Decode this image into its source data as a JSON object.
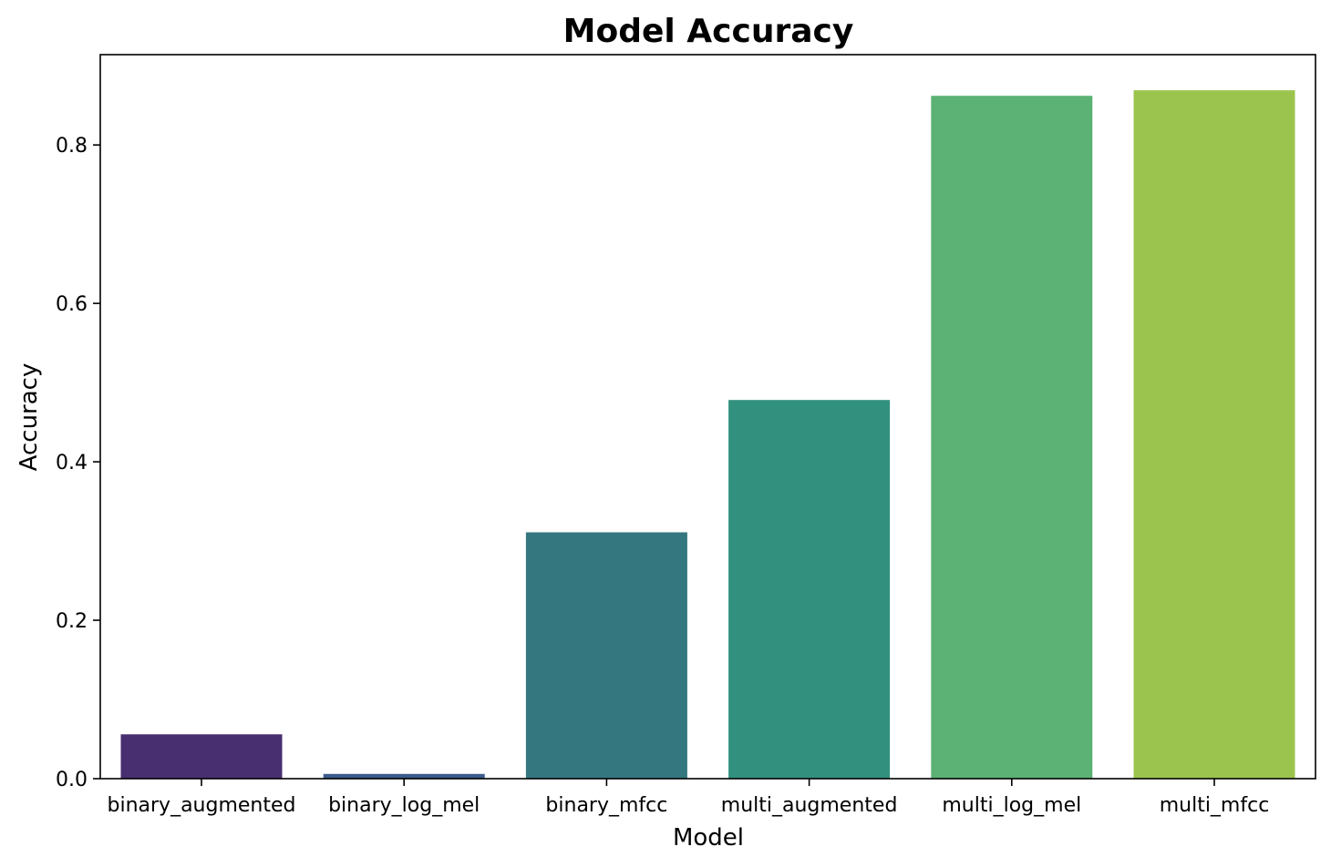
{
  "chart_data": {
    "type": "bar",
    "title": "Model Accuracy",
    "xlabel": "Model",
    "ylabel": "Accuracy",
    "categories": [
      "binary_augmented",
      "binary_log_mel",
      "binary_mfcc",
      "multi_augmented",
      "multi_log_mel",
      "multi_mfcc"
    ],
    "values": [
      0.056,
      0.006,
      0.311,
      0.478,
      0.862,
      0.869
    ],
    "colors": [
      "#482f70",
      "#3b5b8c",
      "#35777f",
      "#31917e",
      "#5cb174",
      "#9bc44e"
    ],
    "ylim": [
      0,
      0.914
    ],
    "yticks": [
      0.0,
      0.2,
      0.4,
      0.6,
      0.8
    ],
    "ytick_labels": [
      "0.0",
      "0.2",
      "0.4",
      "0.6",
      "0.8"
    ],
    "grid": false,
    "legend": "none"
  }
}
